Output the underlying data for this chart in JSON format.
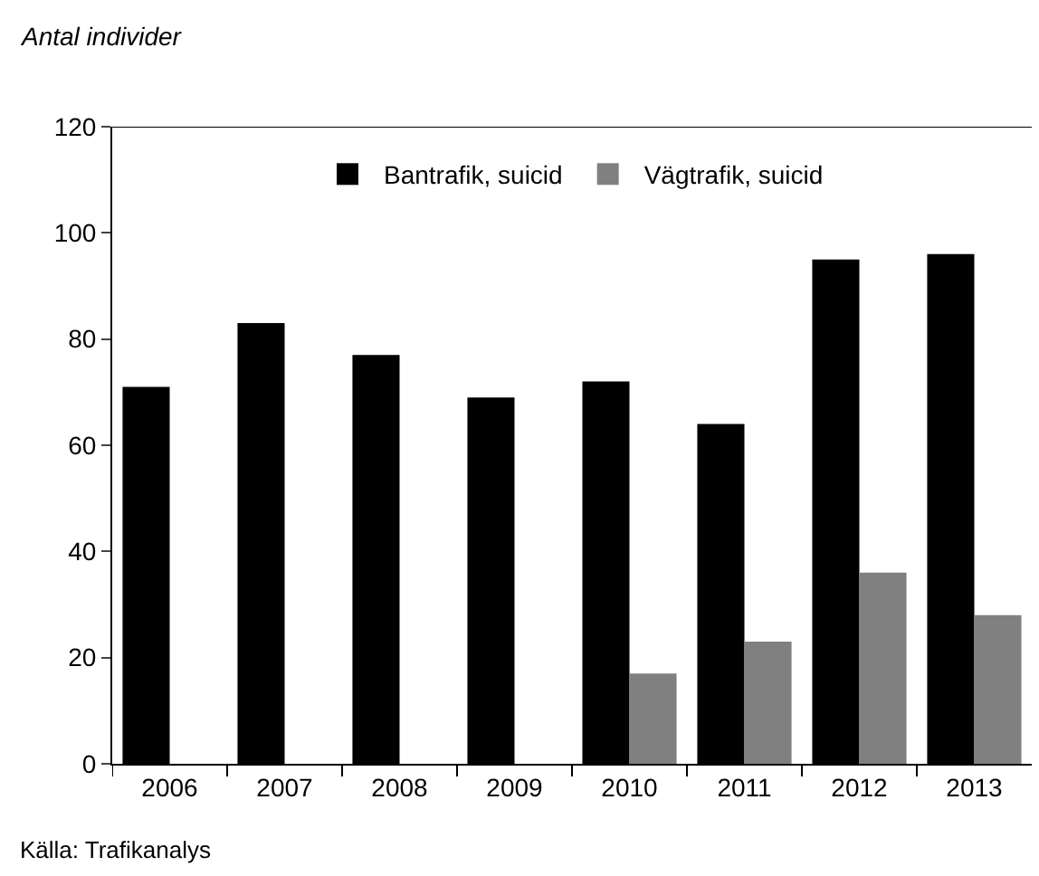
{
  "chart_data": {
    "type": "bar",
    "ylabel": "Antal individer",
    "categories": [
      "2006",
      "2007",
      "2008",
      "2009",
      "2010",
      "2011",
      "2012",
      "2013"
    ],
    "series": [
      {
        "name": "Bantrafik, suicid",
        "color": "#000000",
        "values": [
          71,
          83,
          77,
          69,
          72,
          64,
          95,
          96
        ]
      },
      {
        "name": "Vägtrafik, suicid",
        "color": "#808080",
        "values": [
          null,
          null,
          null,
          null,
          17,
          23,
          36,
          28
        ]
      }
    ],
    "ylim": [
      0,
      120
    ],
    "yticks": [
      0,
      20,
      40,
      60,
      80,
      100,
      120
    ],
    "legend": "top",
    "annotations": [
      "Källa: Trafikanalys"
    ]
  }
}
